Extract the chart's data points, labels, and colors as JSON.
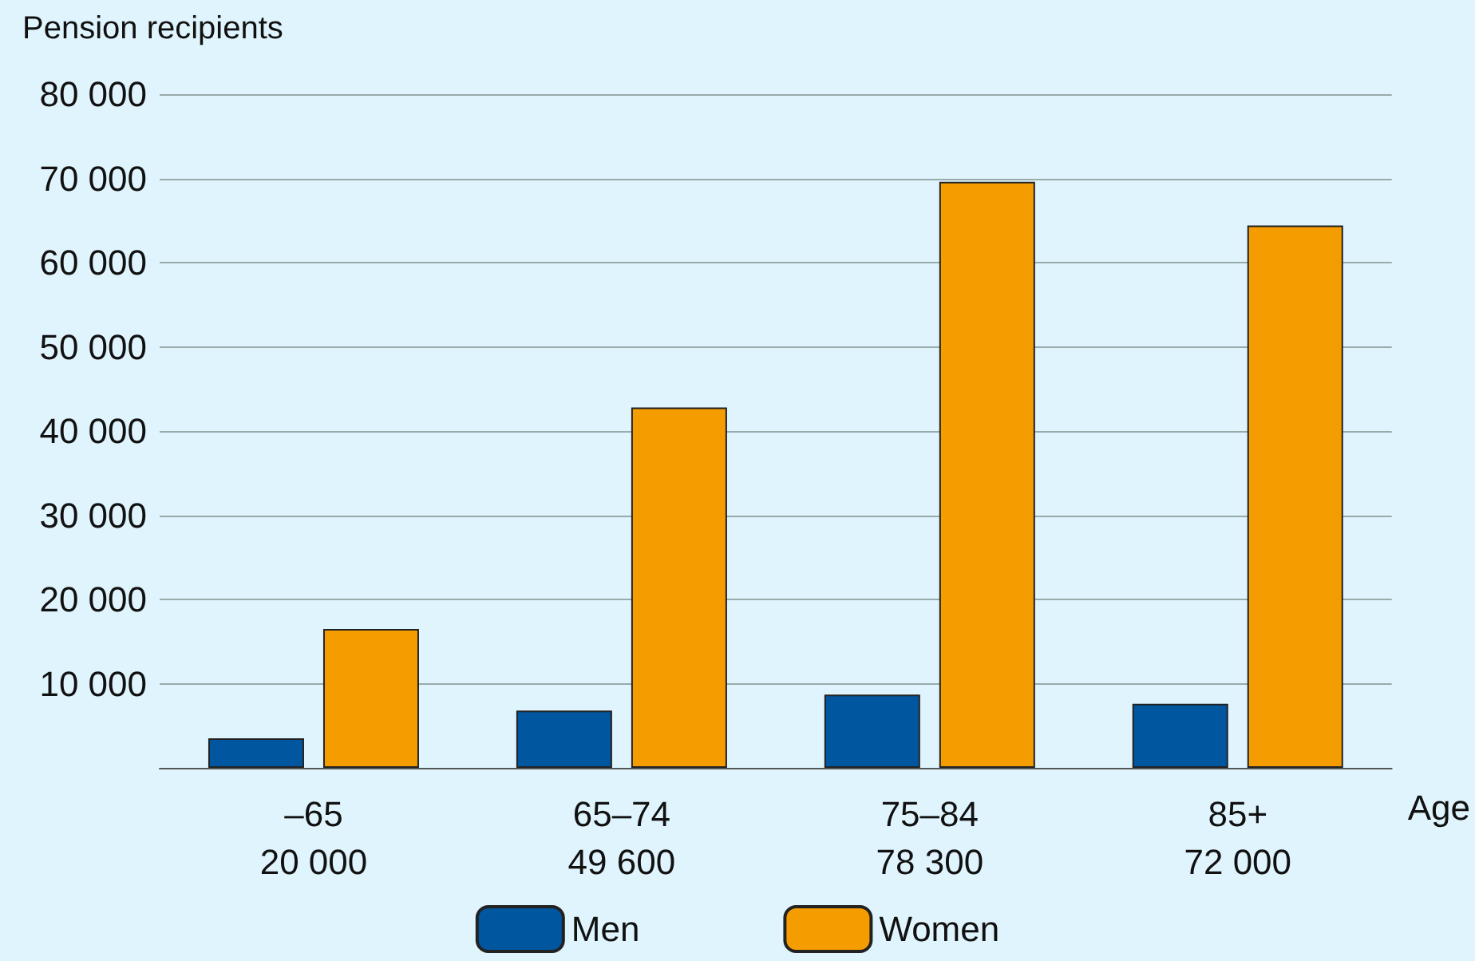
{
  "chart_data": {
    "type": "bar",
    "ylabel": "Pension recipients",
    "xlabel": "Age",
    "categories": [
      "–65\n20 000",
      "65–74\n49 600",
      "75–84\n78 300",
      "85+\n72 000"
    ],
    "series": [
      {
        "name": "Men",
        "color": "#0057a0",
        "values": [
          3500,
          6800,
          8700,
          7600
        ]
      },
      {
        "name": "Women",
        "color": "#f59c00",
        "values": [
          16500,
          42800,
          69600,
          64400
        ]
      }
    ],
    "ylim": [
      0,
      80000
    ],
    "yticks": [
      {
        "value": 0,
        "label": null
      },
      {
        "value": 10000,
        "label": "10 000"
      },
      {
        "value": 20000,
        "label": "20 000"
      },
      {
        "value": 30000,
        "label": "30 000"
      },
      {
        "value": 40000,
        "label": "40 000"
      },
      {
        "value": 50000,
        "label": "50 000"
      },
      {
        "value": 60000,
        "label": "60 000"
      },
      {
        "value": 70000,
        "label": "70 000"
      },
      {
        "value": 80000,
        "label": "80 000"
      }
    ],
    "grid": "y",
    "legend": "bottom"
  }
}
